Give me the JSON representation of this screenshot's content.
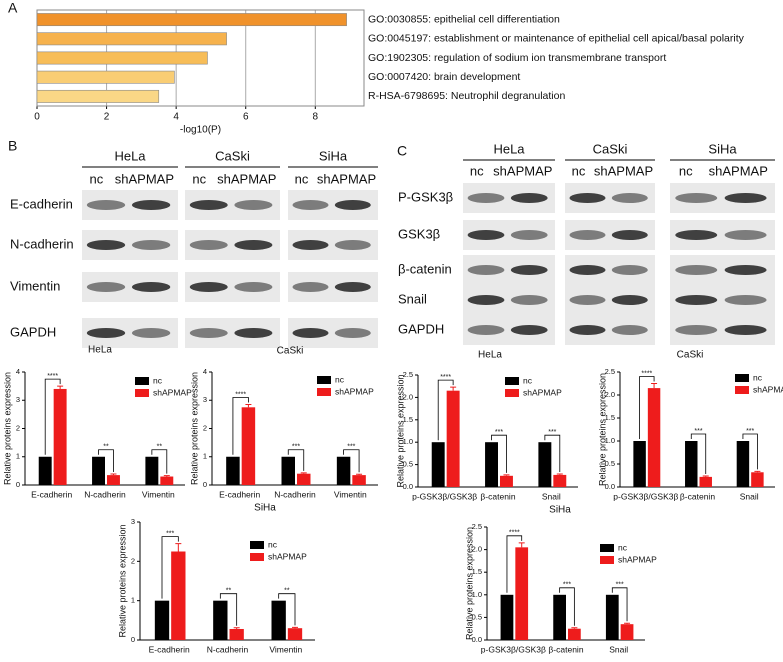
{
  "panel_labels": {
    "a": "A",
    "b": "B",
    "c": "C"
  },
  "blot_b": {
    "cell_lines": [
      "HeLa",
      "CaSki",
      "SiHa"
    ],
    "lanes": [
      "nc",
      "shAPMAP"
    ],
    "proteins": [
      "E-cadherin",
      "N-cadherin",
      "Vimentin",
      "GAPDH"
    ]
  },
  "blot_c": {
    "cell_lines": [
      "HeLa",
      "CaSki",
      "SiHa"
    ],
    "lanes": [
      "nc",
      "shAPMAP"
    ],
    "proteins": [
      "P-GSK3β",
      "GSK3β",
      "β-catenin",
      "Snail",
      "GAPDH"
    ]
  },
  "chart_data": [
    {
      "type": "bar",
      "orientation": "horizontal",
      "categories": [
        "GO:0030855: epithelial cell differentiation",
        "GO:0045197: establishment or maintenance of epithelial cell apical/basal polarity",
        "GO:1902305: regulation of sodium ion transmembrane transport",
        "GO:0007420: brain development",
        "R-HSA-6798695: Neutrophil degranulation"
      ],
      "values": [
        8.9,
        5.45,
        4.9,
        3.95,
        3.5
      ],
      "colors": [
        "#f0922b",
        "#f6b24d",
        "#f7bd58",
        "#f9cd74",
        "#fad786"
      ],
      "xlabel": "-log10(P)",
      "xlim": [
        0,
        9.4
      ],
      "xticks": [
        0,
        2,
        4,
        6,
        8
      ],
      "grid": true
    },
    {
      "type": "bar",
      "orientation": "vertical",
      "title": "HeLa",
      "ylabel": "Relative proteins expression",
      "categories": [
        "E-cadherin",
        "N-cadherin",
        "Vimentin"
      ],
      "series": [
        {
          "name": "nc",
          "color": "#000000",
          "values": [
            1,
            1,
            1
          ]
        },
        {
          "name": "shAPMAP",
          "color": "#ee1c1c",
          "values": [
            3.4,
            0.35,
            0.3
          ],
          "errors": [
            0.1,
            0.04,
            0.03
          ]
        }
      ],
      "annotations": [
        "****",
        "**",
        "**"
      ],
      "ylim": [
        0,
        4
      ],
      "yticks": [
        0,
        1,
        2,
        3,
        4
      ]
    },
    {
      "type": "bar",
      "orientation": "vertical",
      "title": "CaSki",
      "ylabel": "Relative proteins expression",
      "categories": [
        "E-cadherin",
        "N-cadherin",
        "Vimentin"
      ],
      "series": [
        {
          "name": "nc",
          "color": "#000000",
          "values": [
            1,
            1,
            1
          ]
        },
        {
          "name": "shAPMAP",
          "color": "#ee1c1c",
          "values": [
            2.75,
            0.4,
            0.35
          ],
          "errors": [
            0.1,
            0.03,
            0.03
          ]
        }
      ],
      "annotations": [
        "****",
        "***",
        "***"
      ],
      "ylim": [
        0,
        4
      ],
      "yticks": [
        0,
        1,
        2,
        3,
        4
      ]
    },
    {
      "type": "bar",
      "orientation": "vertical",
      "title": "HeLa",
      "ylabel": "Relative proteins expression",
      "categories": [
        "p-GSK3β/GSK3β",
        "β-catenin",
        "Snail"
      ],
      "series": [
        {
          "name": "nc",
          "color": "#000000",
          "values": [
            1,
            1,
            1
          ]
        },
        {
          "name": "shAPMAP",
          "color": "#ee1c1c",
          "values": [
            2.15,
            0.25,
            0.27
          ],
          "errors": [
            0.08,
            0.02,
            0.02
          ]
        }
      ],
      "annotations": [
        "****",
        "***",
        "***"
      ],
      "ylim": [
        0,
        2.5
      ],
      "yticks": [
        {
          "value": 0,
          "label": "0.0"
        },
        0.5,
        {
          "value": 1,
          "label": "1.0"
        },
        1.5,
        {
          "value": 2,
          "label": "2.0"
        },
        2.5
      ]
    },
    {
      "type": "bar",
      "orientation": "vertical",
      "title": "CaSki",
      "ylabel": "Relative proteins expression",
      "categories": [
        "p-GSK3β/GSK3β",
        "β-catenin",
        "Snail"
      ],
      "series": [
        {
          "name": "nc",
          "color": "#000000",
          "values": [
            1,
            1,
            1
          ]
        },
        {
          "name": "shAPMAP",
          "color": "#ee1c1c",
          "values": [
            2.15,
            0.22,
            0.32
          ],
          "errors": [
            0.1,
            0.02,
            0.02
          ]
        }
      ],
      "annotations": [
        "****",
        "***",
        "***"
      ],
      "ylim": [
        0,
        2.5
      ],
      "yticks": [
        {
          "value": 0,
          "label": "0.0"
        },
        0.5,
        {
          "value": 1,
          "label": "1.0"
        },
        1.5,
        {
          "value": 2,
          "label": "2.0"
        },
        2.5
      ]
    },
    {
      "type": "bar",
      "orientation": "vertical",
      "title": "SiHa",
      "ylabel": "Relative proteins expression",
      "categories": [
        "E-cadherin",
        "N-cadherin",
        "Vimentin"
      ],
      "series": [
        {
          "name": "nc",
          "color": "#000000",
          "values": [
            1,
            1,
            1
          ]
        },
        {
          "name": "shAPMAP",
          "color": "#ee1c1c",
          "values": [
            2.25,
            0.28,
            0.3
          ],
          "errors": [
            0.2,
            0.03,
            0.02
          ]
        }
      ],
      "annotations": [
        "***",
        "**",
        "**"
      ],
      "ylim": [
        0,
        3
      ],
      "yticks": [
        0,
        1,
        2,
        3
      ]
    },
    {
      "type": "bar",
      "orientation": "vertical",
      "title": "SiHa",
      "ylabel": "Relative proteins expression",
      "categories": [
        "p-GSK3β/GSK3β",
        "β-catenin",
        "Snail"
      ],
      "series": [
        {
          "name": "nc",
          "color": "#000000",
          "values": [
            1,
            1,
            1
          ]
        },
        {
          "name": "shAPMAP",
          "color": "#ee1c1c",
          "values": [
            2.05,
            0.25,
            0.35
          ],
          "errors": [
            0.1,
            0.02,
            0.02
          ]
        }
      ],
      "annotations": [
        "****",
        "***",
        "***"
      ],
      "ylim": [
        0,
        2.5
      ],
      "yticks": [
        {
          "value": 0,
          "label": "0.0"
        },
        0.5,
        {
          "value": 1,
          "label": "1.0"
        },
        1.5,
        {
          "value": 2,
          "label": "2.0"
        },
        2.5
      ]
    }
  ]
}
